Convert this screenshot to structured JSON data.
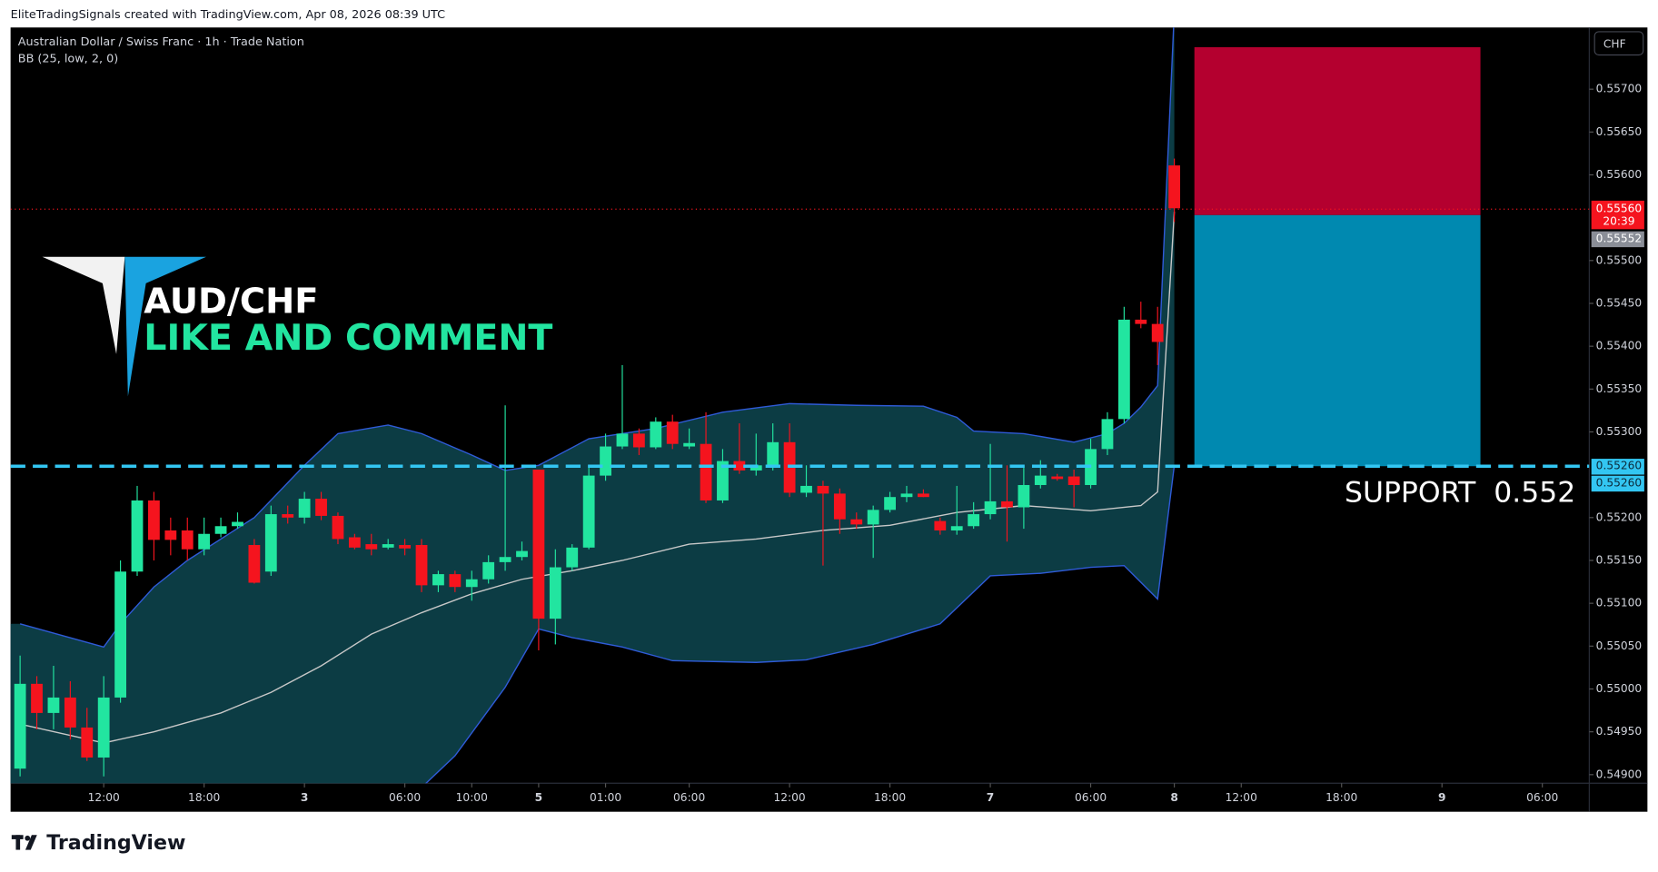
{
  "header": {
    "caption": "EliteTradingSignals created with TradingView.com, Apr 08, 2026 08:39 UTC"
  },
  "chart_data": {
    "type": "candlestick",
    "symbol": "Australian Dollar / Swiss Franc · 1h · Trade Nation",
    "indicator": "BB (25, low, 2, 0)",
    "currency": "CHF",
    "up_color": "#22e5a0",
    "down_color": "#f5141e",
    "ohlc": [
      [
        0.54907,
        0.55039,
        0.54898,
        0.55006
      ],
      [
        0.55006,
        0.55015,
        0.54953,
        0.54972
      ],
      [
        0.54972,
        0.55027,
        0.54953,
        0.5499
      ],
      [
        0.5499,
        0.55009,
        0.54941,
        0.54955
      ],
      [
        0.54955,
        0.54978,
        0.54916,
        0.5492
      ],
      [
        0.5492,
        0.55015,
        0.54898,
        0.5499
      ],
      [
        0.5499,
        0.5515,
        0.54984,
        0.55137
      ],
      [
        0.55137,
        0.55237,
        0.55132,
        0.5522
      ],
      [
        0.5522,
        0.5523,
        0.5515,
        0.55174
      ],
      [
        0.55185,
        0.552,
        0.55156,
        0.55174
      ],
      [
        0.55185,
        0.552,
        0.5515,
        0.55163
      ],
      [
        0.55163,
        0.552,
        0.55156,
        0.55181
      ],
      [
        0.55181,
        0.552,
        0.55177,
        0.5519
      ],
      [
        0.5519,
        0.55206,
        0.55187,
        0.55195
      ],
      [
        0.55168,
        0.55175,
        0.55123,
        0.55124
      ],
      [
        0.55137,
        0.55214,
        0.55132,
        0.55204
      ],
      [
        0.55204,
        0.55214,
        0.55193,
        0.552
      ],
      [
        0.552,
        0.5523,
        0.55193,
        0.55222
      ],
      [
        0.55222,
        0.5523,
        0.55197,
        0.55202
      ],
      [
        0.55202,
        0.55206,
        0.55169,
        0.55175
      ],
      [
        0.55177,
        0.55181,
        0.55163,
        0.55165
      ],
      [
        0.55169,
        0.55181,
        0.55156,
        0.55163
      ],
      [
        0.55165,
        0.55175,
        0.55163,
        0.55169
      ],
      [
        0.55168,
        0.55175,
        0.55156,
        0.55164
      ],
      [
        0.55168,
        0.55175,
        0.55113,
        0.55121
      ],
      [
        0.55121,
        0.55138,
        0.55113,
        0.55134
      ],
      [
        0.55134,
        0.55138,
        0.55113,
        0.55119
      ],
      [
        0.55119,
        0.55138,
        0.55103,
        0.55128
      ],
      [
        0.55128,
        0.55156,
        0.55123,
        0.55148
      ],
      [
        0.55148,
        0.55331,
        0.55138,
        0.55154
      ],
      [
        0.55154,
        0.55172,
        0.5515,
        0.55161
      ],
      [
        0.55256,
        0.55256,
        0.55045,
        0.55082
      ],
      [
        0.55082,
        0.55163,
        0.55052,
        0.55142
      ],
      [
        0.55142,
        0.55169,
        0.55138,
        0.55165
      ],
      [
        0.55165,
        0.55261,
        0.55163,
        0.55249
      ],
      [
        0.55249,
        0.55298,
        0.55243,
        0.55283
      ],
      [
        0.55283,
        0.55378,
        0.5528,
        0.55298
      ],
      [
        0.55298,
        0.55304,
        0.55273,
        0.55282
      ],
      [
        0.55282,
        0.55317,
        0.5528,
        0.55312
      ],
      [
        0.55312,
        0.5532,
        0.5528,
        0.55286
      ],
      [
        0.55283,
        0.55304,
        0.5528,
        0.55287
      ],
      [
        0.55286,
        0.55323,
        0.55217,
        0.5522
      ],
      [
        0.5522,
        0.5528,
        0.55217,
        0.55266
      ],
      [
        0.55266,
        0.5531,
        0.55251,
        0.55255
      ],
      [
        0.55255,
        0.55298,
        0.55249,
        0.55261
      ],
      [
        0.55261,
        0.5531,
        0.55255,
        0.55288
      ],
      [
        0.55288,
        0.5531,
        0.55224,
        0.55229
      ],
      [
        0.55229,
        0.55261,
        0.55224,
        0.55237
      ],
      [
        0.55237,
        0.55243,
        0.55144,
        0.55228
      ],
      [
        0.55228,
        0.55234,
        0.55181,
        0.55198
      ],
      [
        0.55198,
        0.55206,
        0.55187,
        0.55192
      ],
      [
        0.55192,
        0.55214,
        0.55153,
        0.55209
      ],
      [
        0.55209,
        0.5523,
        0.55206,
        0.55224
      ],
      [
        0.55224,
        0.55237,
        0.55218,
        0.55228
      ],
      [
        0.55228,
        0.55233,
        0.55224,
        0.55224
      ],
      [
        0.55196,
        0.552,
        0.5518,
        0.55185
      ],
      [
        0.55185,
        0.55237,
        0.5518,
        0.5519
      ],
      [
        0.5519,
        0.55218,
        0.55187,
        0.55204
      ],
      [
        0.55204,
        0.55286,
        0.55198,
        0.55219
      ],
      [
        0.55219,
        0.55261,
        0.55172,
        0.55212
      ],
      [
        0.55212,
        0.55261,
        0.55187,
        0.55238
      ],
      [
        0.55238,
        0.55267,
        0.55234,
        0.55249
      ],
      [
        0.55248,
        0.55251,
        0.55243,
        0.55245
      ],
      [
        0.55248,
        0.55256,
        0.55212,
        0.55238
      ],
      [
        0.55238,
        0.55292,
        0.55234,
        0.5528
      ],
      [
        0.5528,
        0.55323,
        0.55273,
        0.55315
      ],
      [
        0.55315,
        0.55446,
        0.5531,
        0.55431
      ],
      [
        0.55431,
        0.55452,
        0.55421,
        0.55426
      ],
      [
        0.55426,
        0.55446,
        0.55378,
        0.55405
      ],
      [
        0.55611,
        0.55619,
        0.55545,
        0.55561
      ]
    ],
    "bollinger": {
      "band_color": "#2f5bd8",
      "basis_color": "#c8c8c8",
      "fill": "#0e4650",
      "upper": {
        "x": [
          0,
          5,
          6,
          8,
          10,
          14,
          17,
          19,
          22,
          24,
          27,
          29,
          31,
          34,
          38,
          42,
          46,
          50,
          54,
          56,
          57,
          60,
          63,
          65,
          66,
          67,
          68,
          69
        ],
        "values": [
          0.55076,
          0.55049,
          0.55076,
          0.55119,
          0.5515,
          0.552,
          0.55261,
          0.55298,
          0.55308,
          0.55298,
          0.55273,
          0.55255,
          0.55261,
          0.55292,
          0.55304,
          0.55323,
          0.55333,
          0.55331,
          0.5533,
          0.55317,
          0.55301,
          0.55298,
          0.55288,
          0.55298,
          0.5531,
          0.55329,
          0.55354,
          0.55791
        ]
      },
      "basis": {
        "x": [
          0,
          5,
          8,
          12,
          15,
          18,
          21,
          24,
          27,
          30,
          33,
          36,
          40,
          44,
          48,
          52,
          56,
          60,
          64,
          67,
          68,
          69
        ],
        "values": [
          0.54959,
          0.54937,
          0.5495,
          0.54972,
          0.54996,
          0.55027,
          0.55064,
          0.55089,
          0.55111,
          0.55128,
          0.55138,
          0.5515,
          0.55169,
          0.55175,
          0.55185,
          0.55191,
          0.55206,
          0.55214,
          0.55208,
          0.55214,
          0.5523,
          0.55557
        ]
      },
      "lower": {
        "x": [
          24,
          26,
          29,
          31,
          33,
          36,
          39,
          44,
          47,
          51,
          55,
          58,
          61,
          64,
          66,
          68,
          69
        ],
        "values": [
          0.54885,
          0.54922,
          0.55002,
          0.5507,
          0.5506,
          0.55049,
          0.55033,
          0.55031,
          0.55034,
          0.55052,
          0.55076,
          0.55132,
          0.55135,
          0.55142,
          0.55144,
          0.55105,
          0.55261
        ]
      }
    },
    "ylim": [
      0.5489,
      0.55772
    ],
    "yticks": [
      {
        "value": 0.549,
        "label": "0.54900"
      },
      {
        "value": 0.5495,
        "label": "0.54950"
      },
      {
        "value": 0.55,
        "label": "0.55000"
      },
      {
        "value": 0.5505,
        "label": "0.55050"
      },
      {
        "value": 0.551,
        "label": "0.55100"
      },
      {
        "value": 0.5515,
        "label": "0.55150"
      },
      {
        "value": 0.552,
        "label": "0.55200"
      },
      {
        "value": 0.553,
        "label": "0.55300"
      },
      {
        "value": 0.5535,
        "label": "0.55350"
      },
      {
        "value": 0.554,
        "label": "0.55400"
      },
      {
        "value": 0.5545,
        "label": "0.55450"
      },
      {
        "value": 0.555,
        "label": "0.55500"
      },
      {
        "value": 0.556,
        "label": "0.55600"
      },
      {
        "value": 0.5565,
        "label": "0.55650"
      },
      {
        "value": 0.557,
        "label": "0.55700"
      }
    ],
    "xticks": [
      {
        "value": 5,
        "label": "12:00"
      },
      {
        "value": 11,
        "label": "18:00"
      },
      {
        "value": 17,
        "label": "3"
      },
      {
        "value": 23,
        "label": "06:00"
      },
      {
        "value": 27,
        "label": "10:00"
      },
      {
        "value": 31,
        "label": "5"
      },
      {
        "value": 35,
        "label": "01:00"
      },
      {
        "value": 40,
        "label": "06:00"
      },
      {
        "value": 46,
        "label": "12:00"
      },
      {
        "value": 52,
        "label": "18:00"
      },
      {
        "value": 58,
        "label": "7"
      },
      {
        "value": 64,
        "label": "06:00"
      },
      {
        "value": 69,
        "label": "8"
      },
      {
        "value": 73,
        "label": "12:00"
      },
      {
        "value": 79,
        "label": "18:00"
      },
      {
        "value": 85,
        "label": "9"
      },
      {
        "value": 91,
        "label": "06:00"
      }
    ],
    "last_price": {
      "value": 0.5556,
      "label": "0.55560",
      "countdown": "20:39",
      "color": "#f5141e"
    },
    "bid_mark": {
      "value": 0.55552,
      "label": "0.55552",
      "color": "#8a8e97"
    },
    "support_marks": [
      {
        "value": 0.5526,
        "label": "0.55260"
      },
      {
        "value": 0.5526,
        "label": "0.55260"
      }
    ],
    "support_color": "#33c6f2",
    "position": {
      "stop": 0.55749,
      "entry": 0.55553,
      "target": 0.5526,
      "stop_color": "#b4002f",
      "target_color": "#0089b0"
    },
    "annotation": "SUPPORT  0.552",
    "watermark": {
      "pair": "AUD/CHF",
      "cta": "LIKE AND COMMENT",
      "cta_color": "#22e5a0"
    }
  },
  "footer": {
    "brand": "TradingView"
  }
}
